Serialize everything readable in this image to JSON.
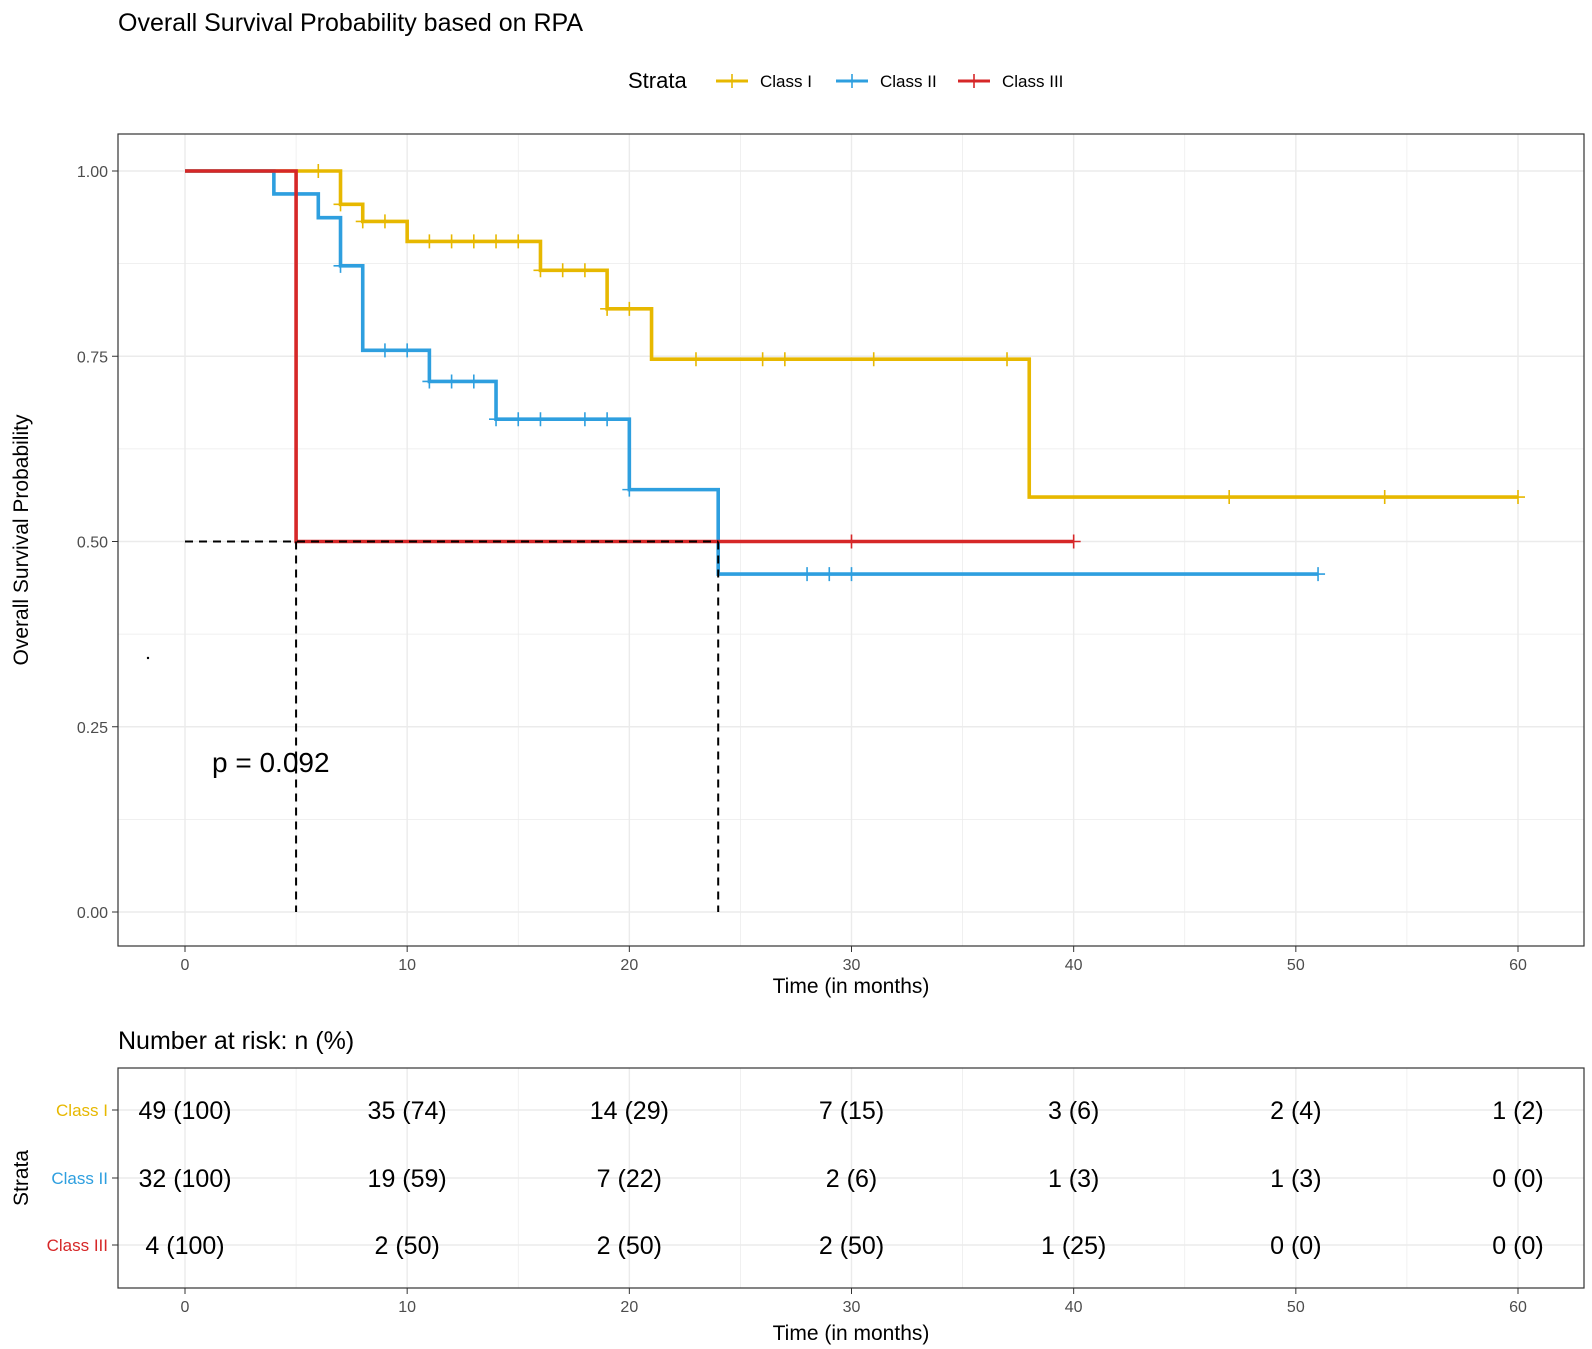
{
  "chart_data": {
    "type": "line",
    "title": "Overall Survival Probability based on RPA",
    "xlabel": "Time (in months)",
    "ylabel": "Overall Survival Probability",
    "xlim": [
      0,
      60
    ],
    "ylim": [
      0,
      1
    ],
    "x_ticks": [
      "0",
      "10",
      "20",
      "30",
      "40",
      "50",
      "60"
    ],
    "y_ticks": [
      "0.00",
      "0.25",
      "0.50",
      "0.75",
      "1.00"
    ],
    "legend_title": "Strata",
    "legend_position": "top",
    "p_value_text": "p = 0.092",
    "median_survival": [
      {
        "strata": "Class III",
        "time": 5,
        "survival": 0.5
      },
      {
        "strata": "Class II",
        "time": 24,
        "survival": 0.5
      }
    ],
    "series": [
      {
        "name": "Class I",
        "color": "#E7B800",
        "steps": [
          [
            0,
            1.0
          ],
          [
            7,
            0.955
          ],
          [
            8,
            0.932
          ],
          [
            10,
            0.905
          ],
          [
            16,
            0.866
          ],
          [
            19,
            0.814
          ],
          [
            21,
            0.746
          ],
          [
            38,
            0.56
          ],
          [
            60,
            0.56
          ]
        ],
        "censors": [
          [
            6,
            1.0
          ],
          [
            7,
            0.955
          ],
          [
            8,
            0.932
          ],
          [
            9,
            0.932
          ],
          [
            11,
            0.905
          ],
          [
            12,
            0.905
          ],
          [
            13,
            0.905
          ],
          [
            14,
            0.905
          ],
          [
            15,
            0.905
          ],
          [
            16,
            0.866
          ],
          [
            17,
            0.866
          ],
          [
            18,
            0.866
          ],
          [
            19,
            0.814
          ],
          [
            20,
            0.814
          ],
          [
            23,
            0.746
          ],
          [
            26,
            0.746
          ],
          [
            27,
            0.746
          ],
          [
            31,
            0.746
          ],
          [
            37,
            0.746
          ],
          [
            47,
            0.56
          ],
          [
            54,
            0.56
          ],
          [
            60,
            0.56
          ]
        ]
      },
      {
        "name": "Class II",
        "color": "#2E9FDF",
        "steps": [
          [
            0,
            1.0
          ],
          [
            4,
            0.969
          ],
          [
            6,
            0.937
          ],
          [
            7,
            0.872
          ],
          [
            8,
            0.758
          ],
          [
            11,
            0.716
          ],
          [
            14,
            0.665
          ],
          [
            20,
            0.57
          ],
          [
            24,
            0.456
          ],
          [
            51,
            0.456
          ]
        ],
        "censors": [
          [
            5,
            0.969
          ],
          [
            7,
            0.872
          ],
          [
            9,
            0.758
          ],
          [
            10,
            0.758
          ],
          [
            11,
            0.716
          ],
          [
            12,
            0.716
          ],
          [
            13,
            0.716
          ],
          [
            14,
            0.665
          ],
          [
            15,
            0.665
          ],
          [
            16,
            0.665
          ],
          [
            18,
            0.665
          ],
          [
            19,
            0.665
          ],
          [
            20,
            0.57
          ],
          [
            28,
            0.456
          ],
          [
            29,
            0.456
          ],
          [
            30,
            0.456
          ],
          [
            51,
            0.456
          ]
        ]
      },
      {
        "name": "Class III",
        "color": "#D62728",
        "steps": [
          [
            0,
            1.0
          ],
          [
            5,
            0.5
          ],
          [
            40,
            0.5
          ]
        ],
        "censors": [
          [
            30,
            0.5
          ],
          [
            40,
            0.5
          ]
        ]
      }
    ],
    "risk_table": {
      "title": "Number at risk: n (%)",
      "ylabel": "Strata",
      "xlabel": "Time (in months)",
      "times": [
        0,
        10,
        20,
        30,
        40,
        50,
        60
      ],
      "rows": [
        {
          "name": "Class I",
          "color": "#E7B800",
          "cells": [
            "49 (100)",
            "35 (74)",
            "14 (29)",
            "7 (15)",
            "3 (6)",
            "2 (4)",
            "1 (2)"
          ]
        },
        {
          "name": "Class II",
          "color": "#2E9FDF",
          "cells": [
            "32 (100)",
            "19 (59)",
            "7 (22)",
            "2 (6)",
            "1 (3)",
            "1 (3)",
            "0 (0)"
          ]
        },
        {
          "name": "Class III",
          "color": "#D62728",
          "cells": [
            "4 (100)",
            "2 (50)",
            "2 (50)",
            "2 (50)",
            "1 (25)",
            "0 (0)",
            "0 (0)"
          ]
        }
      ]
    }
  }
}
